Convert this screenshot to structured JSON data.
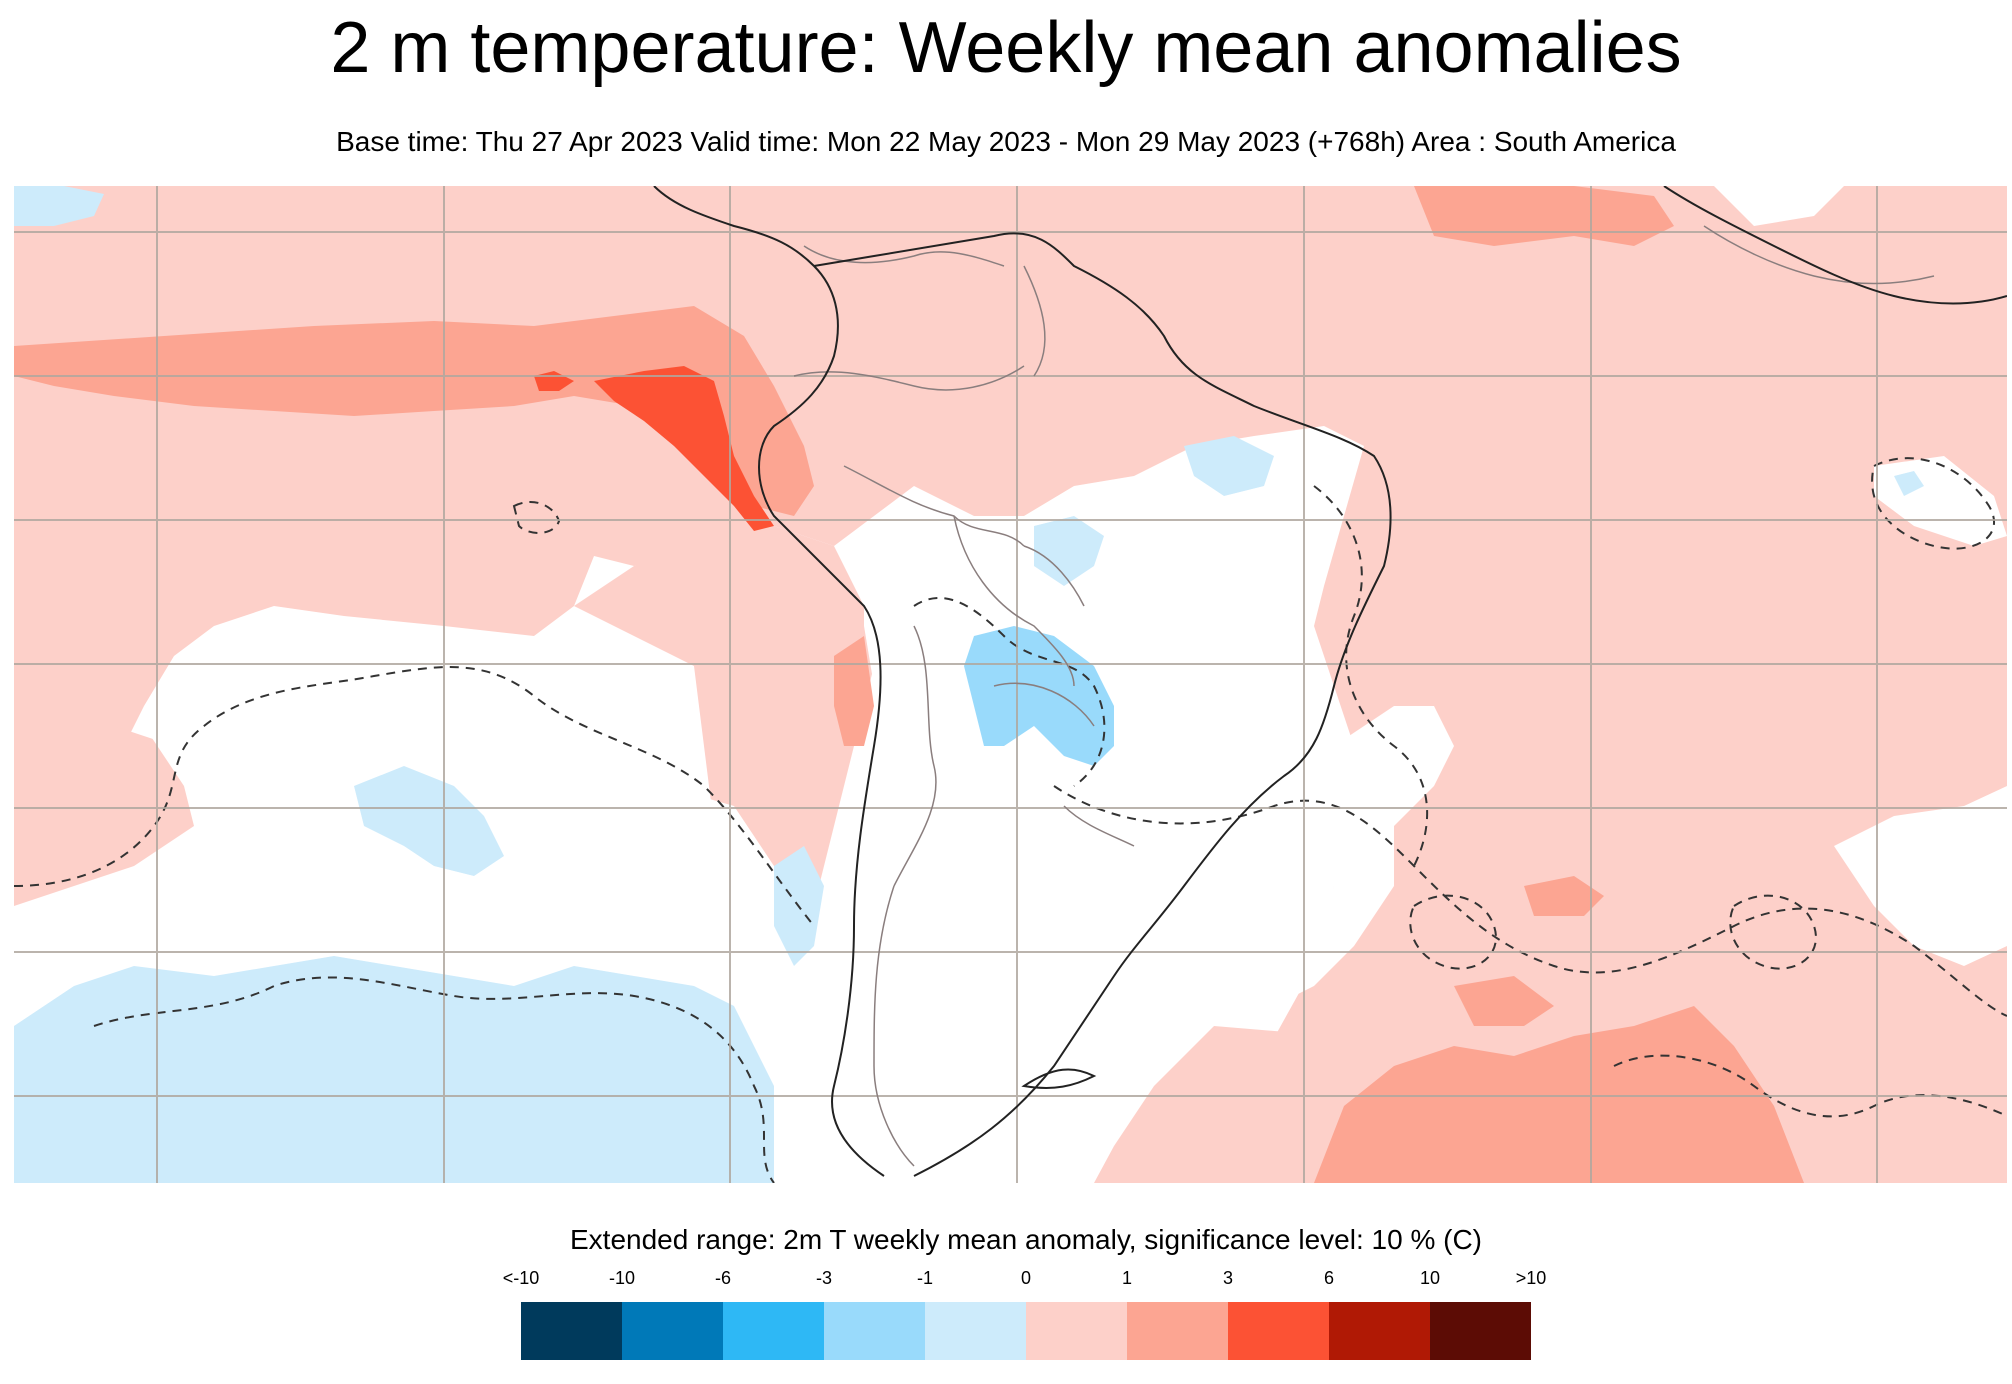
{
  "title": "2 m temperature: Weekly mean anomalies",
  "subtitle": "Base time: Thu 27 Apr 2023 Valid time: Mon 22 May 2023 - Mon 29 May 2023 (+768h) Area : South America",
  "map": {
    "region": "South America",
    "projection": "equirectangular",
    "grid": true,
    "colors": {
      "ocean_background": "#ffffff",
      "land_outline": "#222222",
      "border": "#8a7e7e",
      "gridline": "#b0a89f",
      "significance_contour": "#333333"
    },
    "anomaly_fields": [
      "neutral (-1 to 1)",
      "warm 0 to 1",
      "warm 1 to 3",
      "warm 3 to 6",
      "cool -1 to 0"
    ]
  },
  "legend": {
    "title": "Extended range: 2m T weekly mean anomaly, significance level: 10 % (C)",
    "labels": [
      "<-10",
      "-10",
      "-6",
      "-3",
      "-1",
      "0",
      "1",
      "3",
      "6",
      "10",
      ">10"
    ],
    "colors": [
      "#003a5c",
      "#0079b8",
      "#2eb8f5",
      "#99dafb",
      "#cdebfb",
      "#fdd0c9",
      "#fca592",
      "#fc5234",
      "#b01905",
      "#5c0c05"
    ]
  }
}
